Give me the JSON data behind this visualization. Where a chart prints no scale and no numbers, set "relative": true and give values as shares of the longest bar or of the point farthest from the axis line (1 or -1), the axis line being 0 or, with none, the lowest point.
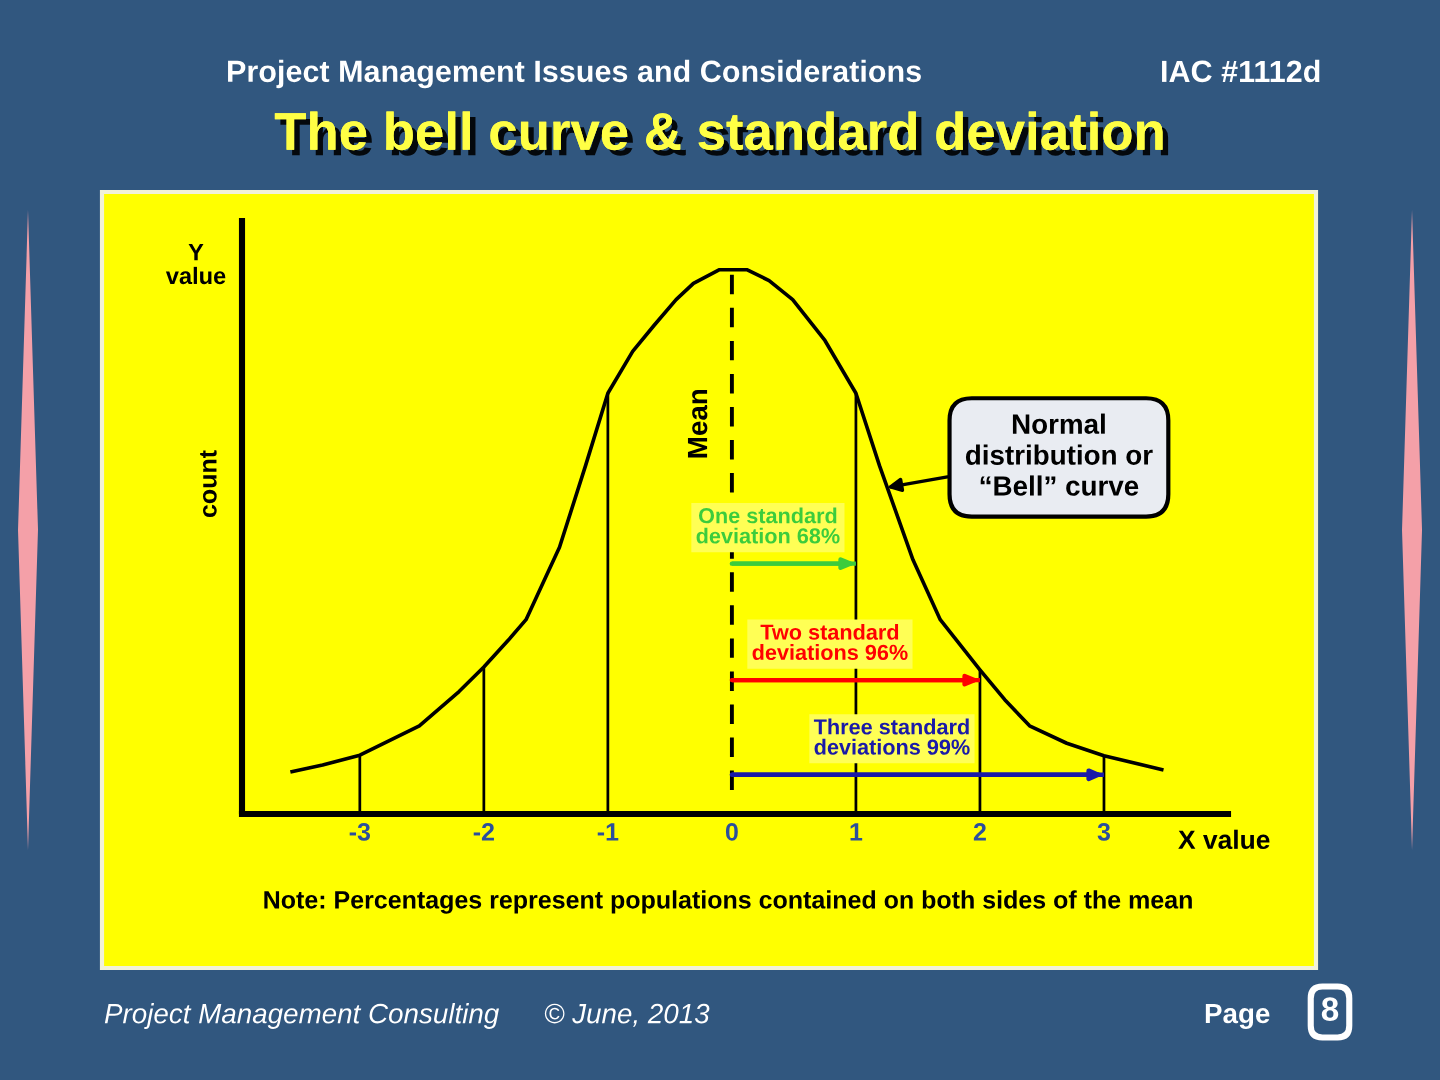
{
  "chart_data": {
    "type": "line",
    "title": "The bell curve & standard deviation",
    "subtitle": "Project Management Issues and Considerations",
    "xlabel": "X value",
    "ylabel": "count",
    "relative": true,
    "tick_labels": "x",
    "xlim": [
      -3.95,
      4
    ],
    "xticks": [
      -3,
      -2,
      -1,
      0,
      1,
      2,
      3
    ],
    "series": [
      {
        "color": "#000000",
        "x": [
          -3.56,
          -3.3,
          -3,
          -2.52,
          -2.2,
          -2,
          -1.8,
          -1.66,
          -1.5,
          -1.39,
          -1.18,
          -1,
          -0.8,
          -0.63,
          -0.45,
          -0.31,
          -0.1,
          0,
          0.12,
          0.3,
          0.49,
          0.75,
          1,
          1.19,
          1.46,
          1.68,
          2,
          2.2,
          2.4,
          2.7,
          3,
          3.48
        ],
        "values": [
          0.077,
          0.09,
          0.108,
          0.162,
          0.225,
          0.27,
          0.32,
          0.357,
          0.436,
          0.49,
          0.64,
          0.773,
          0.85,
          0.897,
          0.945,
          0.975,
          1.0,
          1.0,
          1.0,
          0.98,
          0.945,
          0.87,
          0.773,
          0.64,
          0.467,
          0.357,
          0.265,
          0.21,
          0.162,
          0.13,
          0.107,
          0.081
        ]
      },
      {
        "type": "bar",
        "color": "#000000",
        "x": [
          -3,
          -2,
          -1,
          1,
          2,
          3
        ],
        "values": [
          0.108,
          0.27,
          0.773,
          0.773,
          0.265,
          0.107
        ]
      },
      {
        "name": "One standard deviation 68%",
        "color": "#3ccc3c",
        "x": [
          0,
          1
        ],
        "values": [
          0.46,
          0.46
        ]
      },
      {
        "name": "Two standard deviations 96%",
        "color": "#ff0000",
        "x": [
          0,
          2
        ],
        "values": [
          0.246,
          0.246
        ]
      },
      {
        "name": "Three standard deviations 99%",
        "color": "#1a1aa8",
        "x": [
          0,
          3
        ],
        "values": [
          0.072,
          0.072
        ]
      }
    ],
    "ref_lines": [
      {
        "axis": "x",
        "value": 0,
        "label": "Mean",
        "line_style": "dashed",
        "color": "#000000"
      },
      {
        "axis": "x",
        "value": -3.95,
        "color": "#000000"
      }
    ],
    "annotations": [
      {
        "text": "Normal distribution or “Bell” curve",
        "x": 1.25,
        "y": 0.6
      },
      "Y value",
      "Note: Percentages represent populations contained on both sides of the mean",
      "IAC #1112d",
      "Project Management Consulting",
      "© June, 2013",
      "Page",
      "8"
    ]
  }
}
